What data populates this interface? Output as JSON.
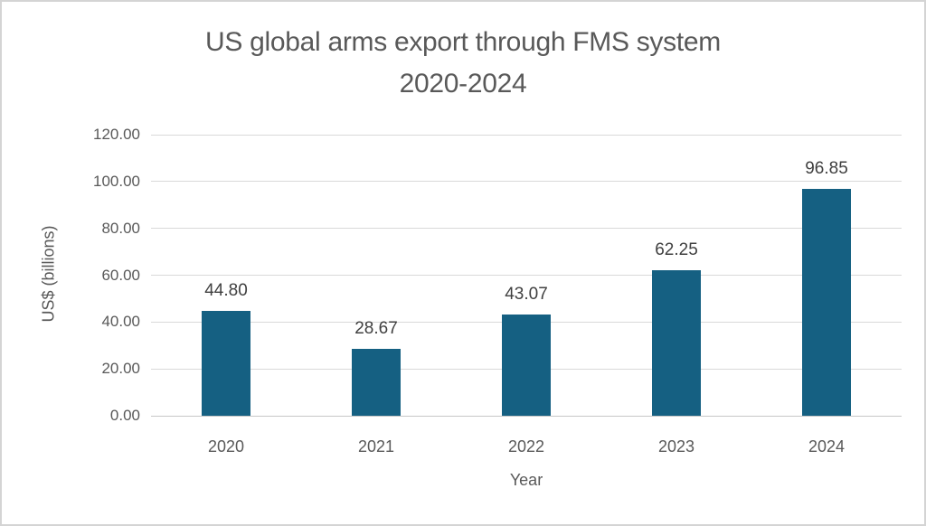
{
  "chart_data": {
    "type": "bar",
    "title_lines": [
      "US global arms export through FMS system",
      "2020-2024"
    ],
    "categories": [
      "2020",
      "2021",
      "2022",
      "2023",
      "2024"
    ],
    "values": [
      44.8,
      28.67,
      43.07,
      62.25,
      96.85
    ],
    "value_labels": [
      "44.80",
      "28.67",
      "43.07",
      "62.25",
      "96.85"
    ],
    "xlabel": "Year",
    "ylabel": "US$ (billions)",
    "ylim": [
      0,
      120
    ],
    "y_tick_values": [
      0,
      20,
      40,
      60,
      80,
      100,
      120
    ],
    "y_tick_labels": [
      "0.00",
      "20.00",
      "40.00",
      "60.00",
      "80.00",
      "100.00",
      "120.00"
    ],
    "grid": "horizontal",
    "legend": "none",
    "colors": {
      "bar": "#156082",
      "gridline": "#d9d9d9",
      "axis_text": "#595959",
      "data_label": "#404040",
      "frame_border": "#d4d4d4",
      "background": "#ffffff"
    }
  }
}
